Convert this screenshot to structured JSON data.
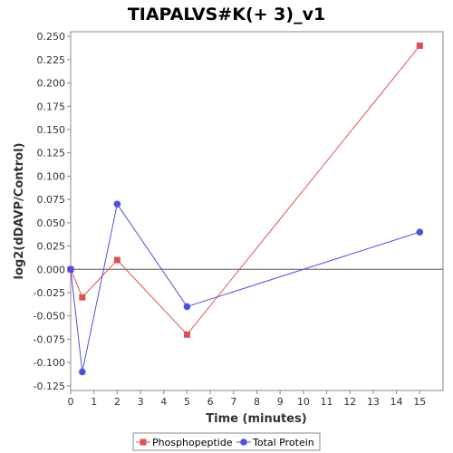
{
  "chart_data": {
    "type": "line",
    "title": "TIAPALVS#K(+ 3)_v1",
    "xlabel": "Time (minutes)",
    "ylabel": "log2(dDAVP/Control)",
    "xlim": [
      0,
      16
    ],
    "ylim": [
      -0.13,
      0.255
    ],
    "x_ticks": [
      0,
      1,
      2,
      3,
      4,
      5,
      6,
      7,
      8,
      9,
      10,
      11,
      12,
      13,
      14,
      15
    ],
    "x_tick_labels": [
      "0",
      "1",
      "2",
      "3",
      "4",
      "5",
      "6",
      "7",
      "8",
      "9",
      "10",
      "11",
      "12",
      "13",
      "14",
      "15"
    ],
    "y_ticks": [
      -0.125,
      -0.1,
      -0.075,
      -0.05,
      -0.025,
      0,
      0.025,
      0.05,
      0.075,
      0.1,
      0.125,
      0.15,
      0.175,
      0.2,
      0.225,
      0.25
    ],
    "y_tick_labels": [
      "-0.125",
      "-0.100",
      "-0.075",
      "-0.050",
      "-0.025",
      "0.000",
      "0.025",
      "0.050",
      "0.075",
      "0.100",
      "0.125",
      "0.150",
      "0.175",
      "0.200",
      "0.225",
      "0.250"
    ],
    "zero_line": true,
    "grid": false,
    "legend_position": "bottom",
    "series": [
      {
        "name": "Phosphopeptide",
        "color": "#e05050",
        "marker": "square",
        "x": [
          0,
          0.5,
          2,
          5,
          15
        ],
        "y": [
          0.0,
          -0.03,
          0.01,
          -0.07,
          0.24
        ]
      },
      {
        "name": "Total Protein",
        "color": "#5050e0",
        "marker": "circle",
        "x": [
          0,
          0.5,
          2,
          5,
          15
        ],
        "y": [
          0.0,
          -0.11,
          0.07,
          -0.04,
          0.04
        ]
      }
    ]
  }
}
